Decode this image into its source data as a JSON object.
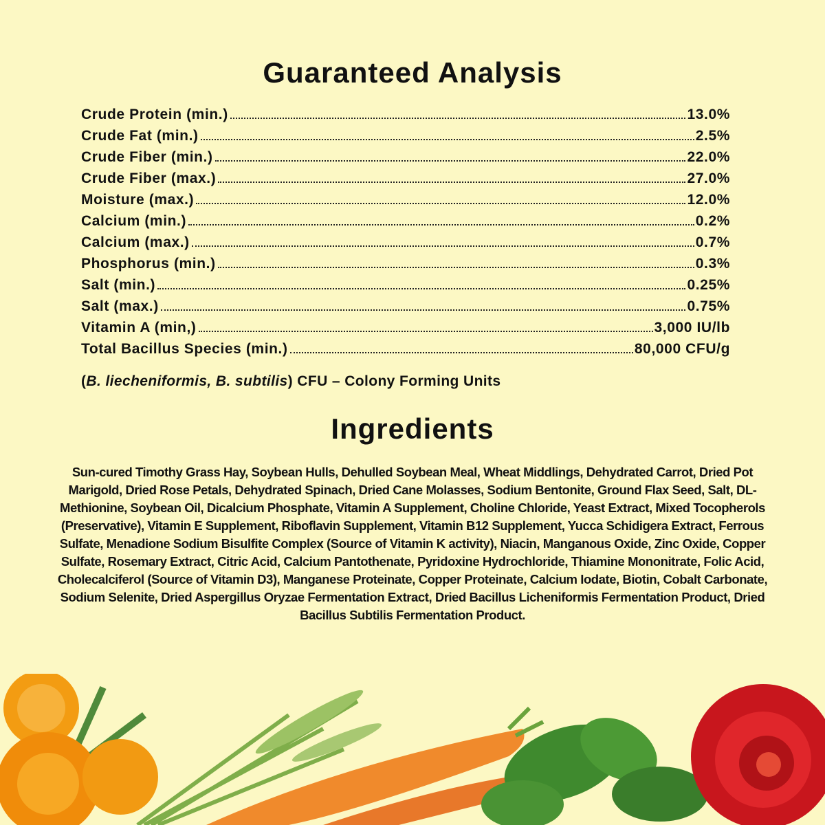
{
  "guaranteed_analysis": {
    "title": "Guaranteed Analysis",
    "rows": [
      {
        "label": "Crude Protein (min.)",
        "value": "13.0%"
      },
      {
        "label": "Crude Fat (min.)",
        "value": "2.5%"
      },
      {
        "label": "Crude Fiber (min.)",
        "value": "22.0%"
      },
      {
        "label": "Crude Fiber (max.)",
        "value": "27.0%"
      },
      {
        "label": "Moisture (max.)",
        "value": "12.0%"
      },
      {
        "label": "Calcium (min.)",
        "value": "0.2%"
      },
      {
        "label": "Calcium (max.)",
        "value": "0.7%"
      },
      {
        "label": "Phosphorus (min.)",
        "value": "0.3%"
      },
      {
        "label": "Salt (min.)",
        "value": "0.25%"
      },
      {
        "label": "Salt (max.)",
        "value": "0.75%"
      },
      {
        "label": "Vitamin A (min,)",
        "value": "3,000 IU/lb"
      },
      {
        "label": "Total Bacillus Species (min.)",
        "value": "80,000 CFU/g"
      }
    ],
    "note_species": "B. liecheniformis, B. subtilis",
    "note_rest": " CFU – Colony Forming Units"
  },
  "ingredients": {
    "title": "Ingredients",
    "text": "Sun-cured Timothy Grass Hay, Soybean Hulls, Dehulled Soybean Meal, Wheat Middlings, Dehydrated Carrot, Dried Pot Marigold, Dried Rose Petals, Dehydrated Spinach, Dried Cane Molasses, Sodium Bentonite, Ground Flax Seed, Salt, DL-Methionine, Soybean Oil, Dicalcium Phosphate, Vitamin A Supplement, Choline Chloride, Yeast Extract, Mixed Tocopherols (Preservative), Vitamin E Supplement, Riboflavin Supplement, Vitamin B12 Supplement, Yucca Schidigera Extract, Ferrous Sulfate, Menadione Sodium Bisulfite Complex (Source of Vitamin K activity), Niacin, Manganous Oxide, Zinc Oxide, Copper Sulfate, Rosemary Extract, Citric Acid, Calcium Pantothenate, Pyridoxine Hydrochloride, Thiamine Mononitrate, Folic Acid, Cholecalciferol (Source of Vitamin D3), Manganese Proteinate, Copper Proteinate, Calcium Iodate, Biotin, Cobalt Carbonate, Sodium Selenite, Dried Aspergillus Oryzae Fermentation Extract, Dried Bacillus Licheniformis Fermentation Product, Dried Bacillus Subtilis Fermentation Product."
  },
  "decor": {
    "items": [
      "marigold",
      "timothy-grass",
      "carrot",
      "spinach",
      "rose"
    ],
    "background": "#fcf8c4"
  }
}
